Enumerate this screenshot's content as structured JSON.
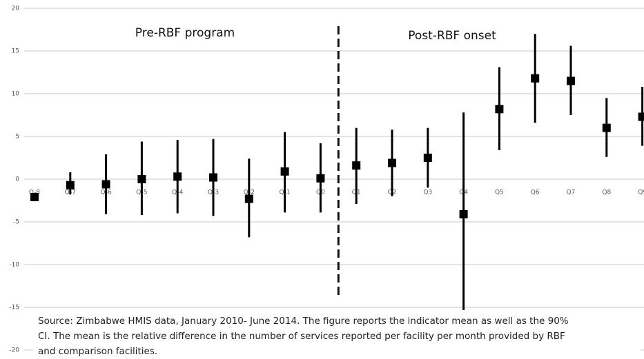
{
  "chart_data": {
    "type": "errorbar",
    "categories": [
      "Q-8",
      "Q-7",
      "Q-6",
      "Q-5",
      "Q-4",
      "Q-3",
      "Q-2",
      "Q-1",
      "Q0",
      "Q1",
      "Q2",
      "Q3",
      "Q4",
      "Q5",
      "Q6",
      "Q7",
      "Q8",
      "Q9"
    ],
    "values": [
      -2.1,
      -0.7,
      -0.6,
      0.0,
      0.3,
      0.2,
      -2.3,
      0.9,
      0.1,
      1.6,
      1.9,
      2.5,
      -4.1,
      8.2,
      11.8,
      11.5,
      6.0,
      7.3
    ],
    "ci_low": [
      -2.5,
      -1.8,
      -4.1,
      -4.2,
      -4.0,
      -4.3,
      -6.8,
      -3.9,
      -3.9,
      -2.9,
      -2.0,
      -1.0,
      -16.0,
      3.4,
      6.6,
      7.5,
      2.6,
      3.9
    ],
    "ci_high": [
      -1.7,
      0.8,
      2.9,
      4.4,
      4.6,
      4.7,
      2.4,
      5.5,
      4.2,
      6.0,
      5.8,
      6.0,
      7.8,
      13.1,
      17.0,
      15.6,
      9.5,
      10.8
    ],
    "color": "#000000",
    "ylim": [
      -20,
      20
    ],
    "yticks": [
      -20,
      -15,
      -10,
      -5,
      0,
      5,
      10,
      15,
      20
    ],
    "grid": true,
    "annotations": [
      "Pre-RBF program",
      "Post-RBF onset"
    ],
    "note": [
      "Source: Zimbabwe HMIS data, January 2010- June 2014. The figure reports the indicator mean as well as the 90%",
      "CI. The mean is the relative difference in the number of services reported per facility per month provided by RBF",
      "and comparison facilities."
    ]
  }
}
